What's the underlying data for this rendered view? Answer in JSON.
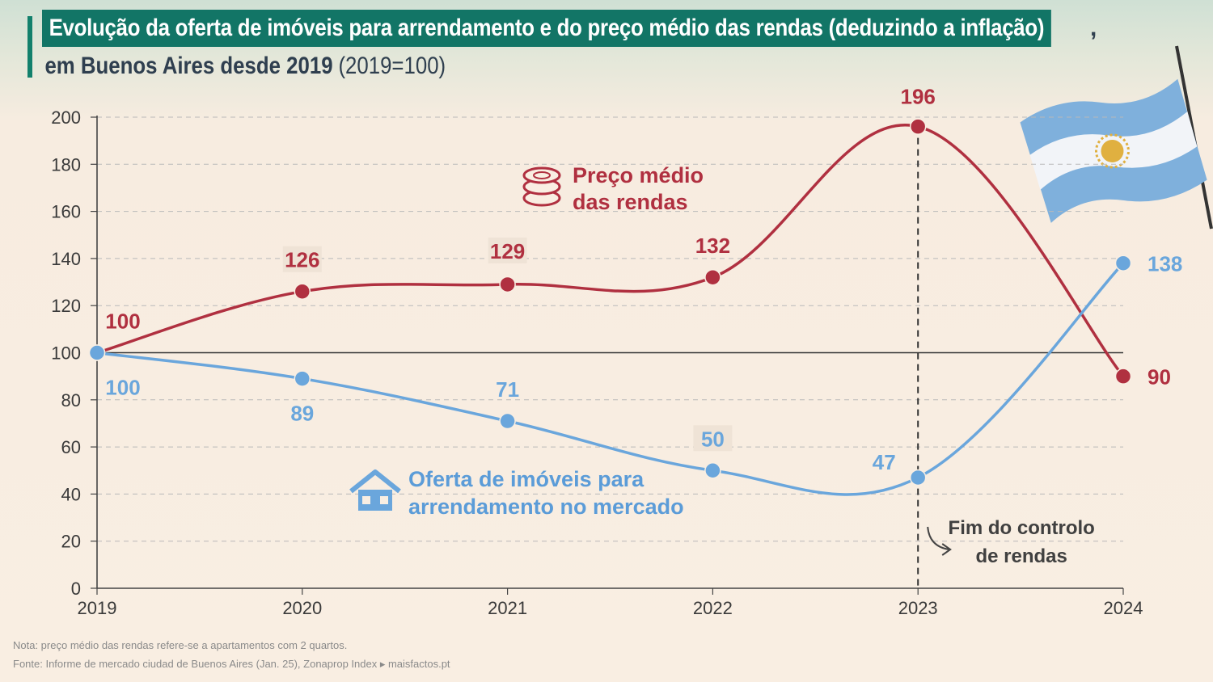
{
  "header": {
    "title_line1": "Evolução da oferta de imóveis para arrendamento e do preço médio das rendas (deduzindo a inflação)",
    "title_line1_end": ",",
    "title_line2_bold": "em Buenos Aires desde 2019",
    "title_line2_base": "(2019=100)"
  },
  "colors": {
    "rent": "#b03040",
    "supply": "#6aa6dc",
    "title_bg": "#127566",
    "flag_blue": "#7fb0dc",
    "flag_sun": "#e0b040"
  },
  "icons": {
    "rent": "coins-stack-icon",
    "supply": "house-icon",
    "annotation": "curved-arrow-icon"
  },
  "chart_data": {
    "type": "line",
    "x": [
      2019,
      2020,
      2021,
      2022,
      2023,
      2024
    ],
    "x_tick_labels": [
      "2019",
      "2020",
      "2021",
      "2022",
      "2023",
      "2024"
    ],
    "ylim": [
      0,
      200
    ],
    "y_ticks": [
      0,
      20,
      40,
      60,
      80,
      100,
      120,
      140,
      160,
      180,
      200
    ],
    "y_tick_labels": [
      "0",
      "20",
      "40",
      "60",
      "80",
      "100",
      "120",
      "140",
      "160",
      "180",
      "200"
    ],
    "reference_line": 100,
    "grid": "horizontal dashed",
    "series": [
      {
        "name": "Preço médio das rendas",
        "name_lines": [
          "Preço médio",
          "das rendas"
        ],
        "values": [
          100,
          126,
          129,
          132,
          196,
          90
        ],
        "labels": [
          "100",
          "126",
          "129",
          "132",
          "196",
          "90"
        ]
      },
      {
        "name": "Oferta de imóveis para arrendamento no mercado",
        "name_lines": [
          "Oferta de imóveis para",
          "arrendamento no mercado"
        ],
        "values": [
          100,
          89,
          71,
          50,
          47,
          138
        ],
        "labels": [
          "100",
          "89",
          "71",
          "50",
          "47",
          "138"
        ]
      }
    ],
    "annotation": {
      "x": 2023,
      "lines": [
        "Fim do controlo",
        "de rendas"
      ]
    }
  },
  "footer": {
    "note": "Nota: preço médio das rendas refere-se a apartamentos com 2 quartos.",
    "source": "Fonte: Informe de mercado ciudad de Buenos Aires (Jan. 25), Zonaprop Index ▸ maisfactos.pt"
  }
}
